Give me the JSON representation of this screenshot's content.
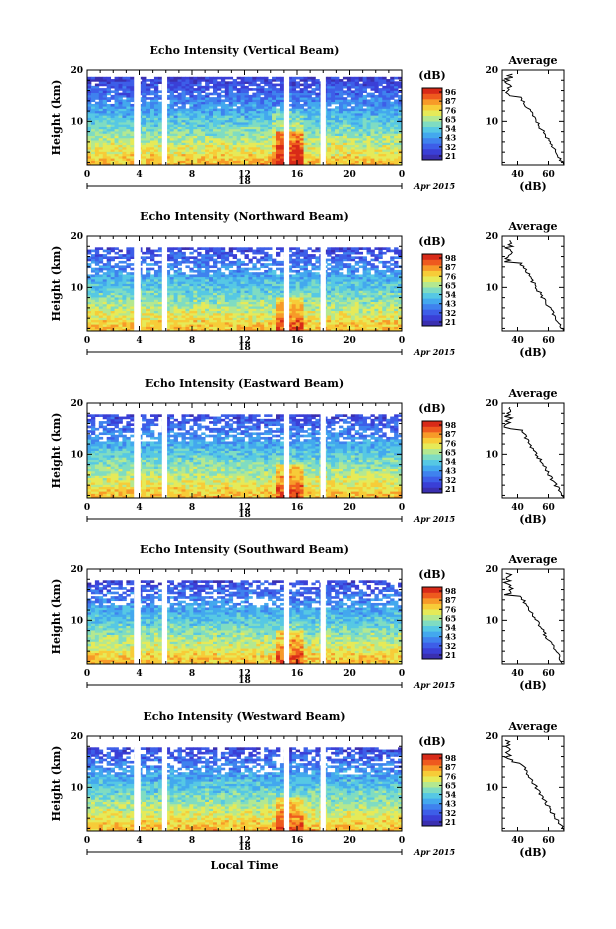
{
  "colors": [
    "#3a2fb0",
    "#3a3fd6",
    "#3d5ee8",
    "#3f82ee",
    "#43a8ee",
    "#56c8e4",
    "#7fdcc2",
    "#b4e890",
    "#e6ea58",
    "#f7cc38",
    "#f79a28",
    "#ee5a1e",
    "#d82a18"
  ],
  "chart_data": [
    {
      "type": "heatmap",
      "title": "Echo Intensity (Vertical Beam)",
      "ylabel": "Height (km)",
      "xlabel": "",
      "y_ticks": [
        "20",
        "10"
      ],
      "x_ticks": [
        "0",
        "4",
        "8",
        "12",
        "16",
        "20",
        "0"
      ],
      "date_day": "18",
      "date_month_year": "Apr 2015",
      "colorbar_unit": "(dB)",
      "colorbar_ticks": [
        "96",
        "87",
        "76",
        "65",
        "54",
        "43",
        "32",
        "21"
      ],
      "xlim_hours": [
        0,
        24
      ],
      "ylim_km": [
        1.5,
        20
      ],
      "gaps_hours": [
        [
          3.6,
          4.1
        ],
        [
          5.7,
          6.1
        ],
        [
          15.0,
          15.4
        ],
        [
          17.8,
          18.2
        ]
      ],
      "avg_title": "Average",
      "avg_xlabel": "(dB)",
      "avg_x_ticks": [
        "40",
        "60"
      ],
      "avg_y_ticks": [
        "20",
        "10"
      ]
    },
    {
      "type": "heatmap",
      "title": "Echo Intensity (Northward Beam)",
      "ylabel": "Height (km)",
      "xlabel": "",
      "y_ticks": [
        "20",
        "10"
      ],
      "x_ticks": [
        "0",
        "4",
        "8",
        "12",
        "16",
        "20",
        "0"
      ],
      "date_day": "18",
      "date_month_year": "Apr 2015",
      "colorbar_unit": "(dB)",
      "colorbar_ticks": [
        "98",
        "87",
        "76",
        "65",
        "54",
        "43",
        "32",
        "21"
      ],
      "xlim_hours": [
        0,
        24
      ],
      "ylim_km": [
        1.5,
        20
      ],
      "gaps_hours": [
        [
          3.6,
          4.1
        ],
        [
          5.7,
          6.1
        ],
        [
          15.0,
          15.4
        ],
        [
          17.8,
          18.2
        ]
      ],
      "avg_title": "Average",
      "avg_xlabel": "(dB)",
      "avg_x_ticks": [
        "40",
        "60"
      ],
      "avg_y_ticks": [
        "20",
        "10"
      ]
    },
    {
      "type": "heatmap",
      "title": "Echo Intensity (Eastward Beam)",
      "ylabel": "Height (km)",
      "xlabel": "",
      "y_ticks": [
        "20",
        "10"
      ],
      "x_ticks": [
        "0",
        "4",
        "8",
        "12",
        "16",
        "20",
        "0"
      ],
      "date_day": "18",
      "date_month_year": "Apr 2015",
      "colorbar_unit": "(dB)",
      "colorbar_ticks": [
        "98",
        "87",
        "76",
        "65",
        "54",
        "43",
        "32",
        "21"
      ],
      "xlim_hours": [
        0,
        24
      ],
      "ylim_km": [
        1.5,
        20
      ],
      "gaps_hours": [
        [
          3.6,
          4.1
        ],
        [
          5.7,
          6.1
        ],
        [
          15.0,
          15.4
        ],
        [
          17.8,
          18.2
        ]
      ],
      "avg_title": "Average",
      "avg_xlabel": "(dB)",
      "avg_x_ticks": [
        "40",
        "60"
      ],
      "avg_y_ticks": [
        "20",
        "10"
      ]
    },
    {
      "type": "heatmap",
      "title": "Echo Intensity (Southward Beam)",
      "ylabel": "Height (km)",
      "xlabel": "",
      "y_ticks": [
        "20",
        "10"
      ],
      "x_ticks": [
        "0",
        "4",
        "8",
        "12",
        "16",
        "20",
        "0"
      ],
      "date_day": "18",
      "date_month_year": "Apr 2015",
      "colorbar_unit": "(dB)",
      "colorbar_ticks": [
        "98",
        "87",
        "76",
        "65",
        "54",
        "43",
        "32",
        "21"
      ],
      "xlim_hours": [
        0,
        24
      ],
      "ylim_km": [
        1.5,
        20
      ],
      "gaps_hours": [
        [
          3.6,
          4.1
        ],
        [
          5.7,
          6.1
        ],
        [
          15.0,
          15.4
        ],
        [
          17.8,
          18.2
        ]
      ],
      "avg_title": "Average",
      "avg_xlabel": "(dB)",
      "avg_x_ticks": [
        "40",
        "60"
      ],
      "avg_y_ticks": [
        "20",
        "10"
      ]
    },
    {
      "type": "heatmap",
      "title": "Echo Intensity (Westward Beam)",
      "ylabel": "Height (km)",
      "xlabel": "Local Time",
      "y_ticks": [
        "20",
        "10"
      ],
      "x_ticks": [
        "0",
        "4",
        "8",
        "12",
        "16",
        "20",
        "0"
      ],
      "date_day": "18",
      "date_month_year": "Apr 2015",
      "colorbar_unit": "(dB)",
      "colorbar_ticks": [
        "98",
        "87",
        "76",
        "65",
        "54",
        "43",
        "32",
        "21"
      ],
      "xlim_hours": [
        0,
        24
      ],
      "ylim_km": [
        1.5,
        20
      ],
      "gaps_hours": [
        [
          3.6,
          4.1
        ],
        [
          5.7,
          6.1
        ],
        [
          15.0,
          15.4
        ],
        [
          17.8,
          18.2
        ]
      ],
      "avg_title": "Average",
      "avg_xlabel": "(dB)",
      "avg_x_ticks": [
        "40",
        "60"
      ],
      "avg_y_ticks": [
        "20",
        "10"
      ]
    }
  ]
}
